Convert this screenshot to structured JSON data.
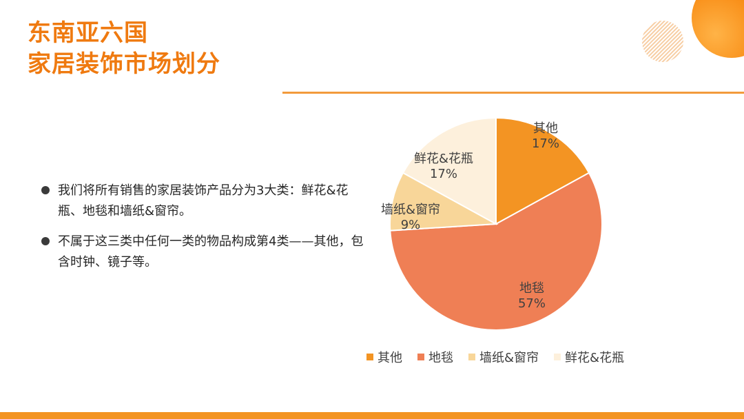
{
  "title": {
    "line1": "东南亚六国",
    "line2": "家居装饰市场划分"
  },
  "bullets": [
    "我们将所有销售的家居装饰产品分为3大类：鲜花&花瓶、地毯和墙纸&窗帘。",
    "不属于这三类中任何一类的物品构成第4类——其他，包含时钟、镜子等。"
  ],
  "chart_data": {
    "type": "pie",
    "title": "",
    "slices": [
      {
        "name": "其他",
        "value": 17,
        "label": "17%",
        "color": "#f39423"
      },
      {
        "name": "地毯",
        "value": 57,
        "label": "57%",
        "color": "#ef7f55"
      },
      {
        "name": "墙纸&窗帘",
        "value": 9,
        "label": "9%",
        "color": "#f8d699"
      },
      {
        "name": "鲜花&花瓶",
        "value": 17,
        "label": "17%",
        "color": "#fdf0dc"
      }
    ],
    "legend_position": "bottom"
  },
  "colors": {
    "accent": "#ef7a10",
    "divider": "#f29a3b",
    "bottom_bar": "#f39423"
  }
}
